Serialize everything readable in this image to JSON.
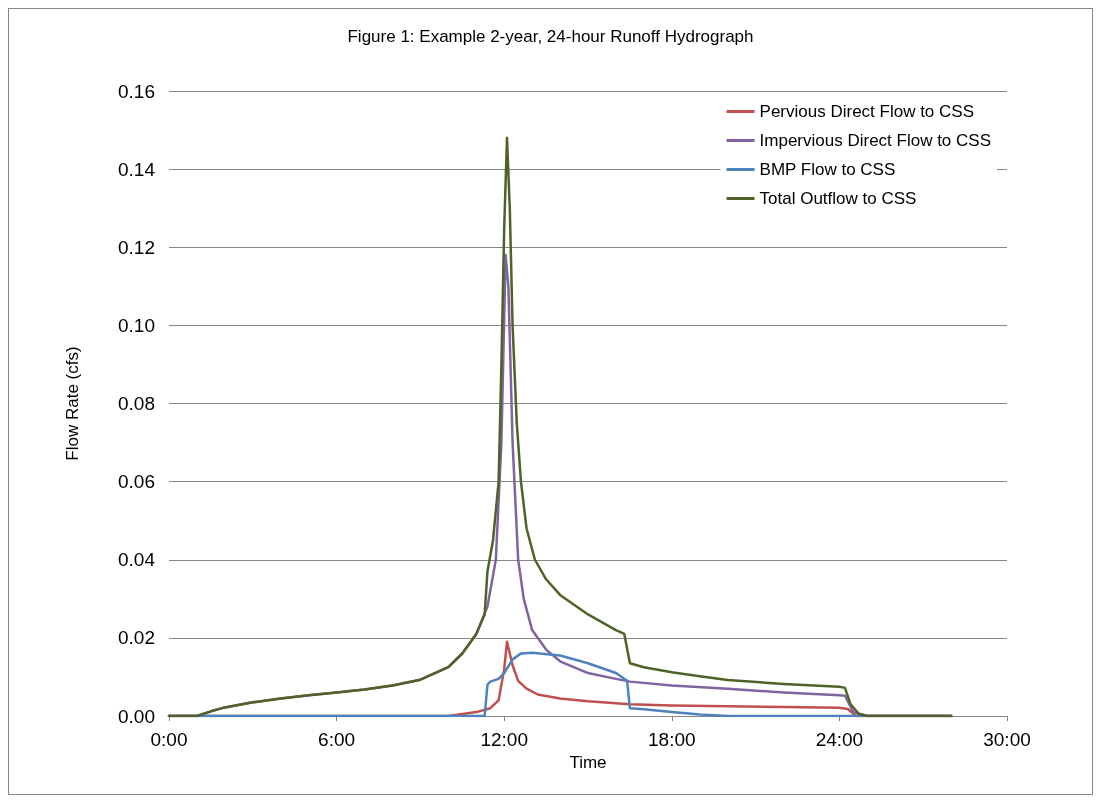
{
  "chart_data": {
    "type": "line",
    "title": "Figure 1: Example 2-year, 24-hour Runoff Hydrograph",
    "xlabel": "Time",
    "ylabel": "Flow Rate (cfs)",
    "xlim": [
      0,
      30
    ],
    "xticks": [
      {
        "value": 0,
        "label": "0:00"
      },
      {
        "value": 6,
        "label": "6:00"
      },
      {
        "value": 12,
        "label": "12:00"
      },
      {
        "value": 18,
        "label": "18:00"
      },
      {
        "value": 24,
        "label": "24:00"
      },
      {
        "value": 30,
        "label": "30:00"
      }
    ],
    "ylim": [
      0,
      0.16
    ],
    "yticks": [
      {
        "value": 0,
        "label": "0.00"
      },
      {
        "value": 0.02,
        "label": "0.02"
      },
      {
        "value": 0.04,
        "label": "0.04"
      },
      {
        "value": 0.06,
        "label": "0.06"
      },
      {
        "value": 0.08,
        "label": "0.08"
      },
      {
        "value": 0.1,
        "label": "0.10"
      },
      {
        "value": 0.12,
        "label": "0.12"
      },
      {
        "value": 0.14,
        "label": "0.14"
      },
      {
        "value": 0.16,
        "label": "0.16"
      }
    ],
    "grid": "y",
    "legend": "top right",
    "marker": "none",
    "line_style": "solid",
    "series": [
      {
        "name": "Pervious Direct Flow to CSS",
        "color": "#c0504d",
        "x": [
          0,
          10,
          10.5,
          11,
          11.5,
          11.8,
          12,
          12.1,
          12.3,
          12.5,
          12.8,
          13.2,
          14,
          15,
          16.5,
          18,
          20,
          22,
          24,
          24.3,
          24.6,
          28
        ],
        "values": [
          0,
          0,
          0.0005,
          0.001,
          0.002,
          0.004,
          0.012,
          0.019,
          0.013,
          0.009,
          0.007,
          0.0055,
          0.0045,
          0.0038,
          0.003,
          0.0027,
          0.0025,
          0.0023,
          0.0021,
          0.0018,
          0,
          0
        ]
      },
      {
        "name": "Impervious Direct Flow to CSS",
        "color": "#8064a2",
        "x": [
          0,
          1,
          1.5,
          2,
          3,
          4,
          5,
          6,
          7,
          8,
          9,
          10,
          10.5,
          11,
          11.4,
          11.7,
          11.9,
          12.05,
          12.15,
          12.3,
          12.5,
          12.7,
          13,
          13.5,
          14,
          15,
          16,
          16.5,
          18,
          20,
          22,
          24,
          24.2,
          24.5,
          25,
          28
        ],
        "values": [
          0,
          0,
          0.0012,
          0.0022,
          0.0035,
          0.0045,
          0.0053,
          0.006,
          0.0068,
          0.0078,
          0.0093,
          0.0125,
          0.016,
          0.021,
          0.028,
          0.04,
          0.07,
          0.118,
          0.11,
          0.07,
          0.04,
          0.03,
          0.022,
          0.017,
          0.014,
          0.011,
          0.0095,
          0.0088,
          0.0078,
          0.007,
          0.006,
          0.0053,
          0.0052,
          0.001,
          0,
          0
        ]
      },
      {
        "name": "BMP Flow to CSS",
        "color": "#4f81bd",
        "x": [
          0,
          11.3,
          11.4,
          11.5,
          11.8,
          12,
          12.3,
          12.6,
          13,
          14,
          15,
          16,
          16.4,
          16.5,
          17,
          18,
          19,
          20,
          28
        ],
        "values": [
          0,
          0,
          0.008,
          0.0088,
          0.0095,
          0.011,
          0.0145,
          0.016,
          0.0162,
          0.0155,
          0.0135,
          0.011,
          0.009,
          0.002,
          0.0017,
          0.001,
          0.0004,
          0,
          0
        ]
      },
      {
        "name": "Total Outflow to CSS",
        "color": "#4f6228",
        "x": [
          0,
          1,
          1.5,
          2,
          3,
          4,
          5,
          6,
          7,
          8,
          9,
          10,
          10.5,
          11,
          11.3,
          11.4,
          11.6,
          11.8,
          11.9,
          12,
          12.1,
          12.2,
          12.3,
          12.45,
          12.6,
          12.8,
          13.1,
          13.5,
          14,
          15,
          16,
          16.3,
          16.5,
          17,
          18,
          19,
          20,
          22,
          24,
          24.2,
          24.4,
          24.7,
          25,
          28
        ],
        "values": [
          0,
          0,
          0.0012,
          0.0022,
          0.0035,
          0.0045,
          0.0053,
          0.006,
          0.0068,
          0.0078,
          0.0093,
          0.0125,
          0.016,
          0.021,
          0.026,
          0.037,
          0.045,
          0.06,
          0.09,
          0.125,
          0.148,
          0.13,
          0.1,
          0.075,
          0.06,
          0.048,
          0.04,
          0.035,
          0.031,
          0.026,
          0.022,
          0.021,
          0.0135,
          0.0125,
          0.0112,
          0.0102,
          0.0092,
          0.0082,
          0.0075,
          0.0072,
          0.003,
          0.0005,
          0,
          0
        ]
      }
    ]
  }
}
